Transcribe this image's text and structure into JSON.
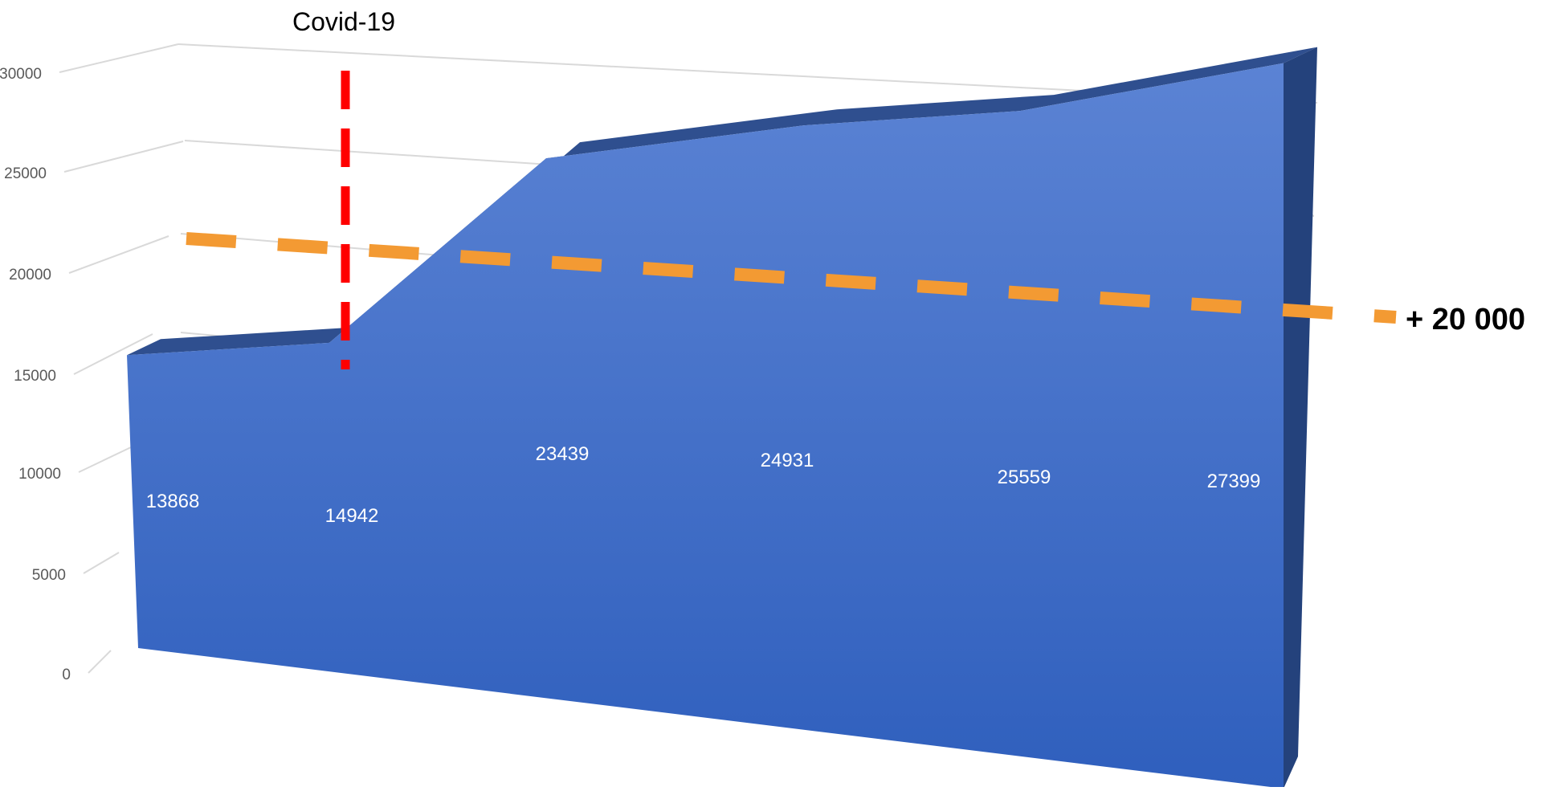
{
  "chart_data": {
    "type": "area",
    "x": [
      "",
      "",
      "",
      "",
      "",
      ""
    ],
    "series": [
      {
        "values": [
          13868,
          14942,
          23439,
          24931,
          25559,
          27399
        ]
      }
    ],
    "y_ticks": [
      "0",
      "5000",
      "10000",
      "15000",
      "20000",
      "25000",
      "30000"
    ],
    "ylim": [
      0,
      30000
    ],
    "grid": true,
    "legend": "none",
    "annotations": {
      "event_label": "Covid-19",
      "threshold_label": "+ 20 000"
    },
    "colors": {
      "area_front": "#3a6fce",
      "area_top": "#2f4f8f",
      "area_side": "#24427c",
      "event_line": "#ff0000",
      "threshold_line": "#f39a33",
      "grid": "#d9d9d9"
    }
  }
}
